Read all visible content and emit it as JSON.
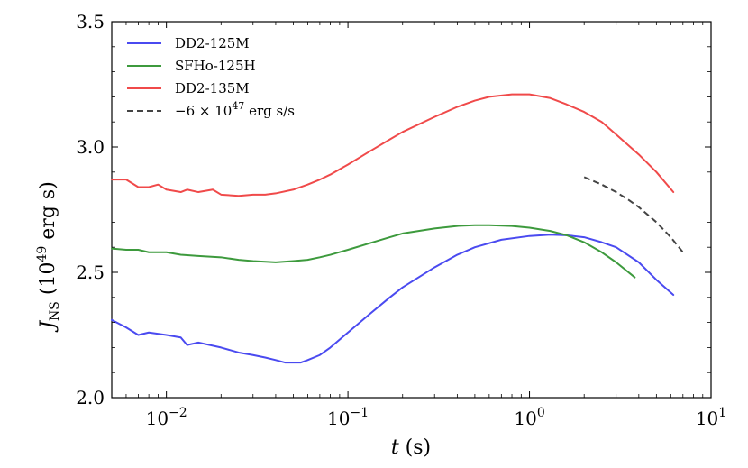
{
  "chart_data": {
    "type": "line",
    "title": "",
    "xlabel": "t (s)",
    "ylabel": "J_NS (10^49 erg s)",
    "xscale": "log",
    "xlim": [
      0.005,
      10
    ],
    "ylim": [
      2.0,
      3.5
    ],
    "grid": false,
    "legend_position": "top-left",
    "x_ticks": [
      {
        "value": 0.01,
        "base": "10",
        "exp": "−2"
      },
      {
        "value": 0.1,
        "base": "10",
        "exp": "−1"
      },
      {
        "value": 1,
        "base": "10",
        "exp": "0"
      },
      {
        "value": 10,
        "base": "10",
        "exp": "1"
      }
    ],
    "y_ticks": [
      {
        "value": 2.0,
        "label": "2.0"
      },
      {
        "value": 2.5,
        "label": "2.5"
      },
      {
        "value": 3.0,
        "label": "3.0"
      },
      {
        "value": 3.5,
        "label": "3.5"
      }
    ],
    "series": [
      {
        "name": "DD2-125M",
        "color": "#4a4af0",
        "dash": "solid",
        "x": [
          0.005,
          0.006,
          0.007,
          0.008,
          0.01,
          0.012,
          0.013,
          0.015,
          0.02,
          0.025,
          0.03,
          0.035,
          0.04,
          0.045,
          0.05,
          0.055,
          0.06,
          0.07,
          0.08,
          0.1,
          0.13,
          0.17,
          0.2,
          0.3,
          0.4,
          0.5,
          0.7,
          1.0,
          1.3,
          1.6,
          2.0,
          2.5,
          3.0,
          4.0,
          5.0,
          6.2
        ],
        "y": [
          2.31,
          2.28,
          2.25,
          2.26,
          2.25,
          2.24,
          2.21,
          2.22,
          2.2,
          2.18,
          2.17,
          2.16,
          2.15,
          2.14,
          2.14,
          2.14,
          2.15,
          2.17,
          2.2,
          2.26,
          2.33,
          2.4,
          2.44,
          2.52,
          2.57,
          2.6,
          2.63,
          2.645,
          2.65,
          2.648,
          2.64,
          2.62,
          2.6,
          2.54,
          2.47,
          2.41
        ]
      },
      {
        "name": "SFHo-125H",
        "color": "#3d9a3d",
        "dash": "solid",
        "x": [
          0.005,
          0.006,
          0.007,
          0.008,
          0.01,
          0.012,
          0.015,
          0.02,
          0.025,
          0.03,
          0.04,
          0.05,
          0.06,
          0.07,
          0.08,
          0.1,
          0.13,
          0.17,
          0.2,
          0.3,
          0.4,
          0.5,
          0.6,
          0.8,
          1.0,
          1.3,
          1.6,
          2.0,
          2.5,
          3.0,
          3.8
        ],
        "y": [
          2.595,
          2.59,
          2.59,
          2.58,
          2.58,
          2.57,
          2.565,
          2.56,
          2.55,
          2.545,
          2.54,
          2.545,
          2.55,
          2.56,
          2.57,
          2.59,
          2.615,
          2.64,
          2.655,
          2.675,
          2.685,
          2.688,
          2.688,
          2.685,
          2.678,
          2.665,
          2.648,
          2.62,
          2.58,
          2.54,
          2.48
        ]
      },
      {
        "name": "DD2-135M",
        "color": "#f04a4a",
        "dash": "solid",
        "x": [
          0.005,
          0.006,
          0.007,
          0.008,
          0.009,
          0.01,
          0.012,
          0.013,
          0.015,
          0.018,
          0.02,
          0.025,
          0.03,
          0.035,
          0.04,
          0.05,
          0.06,
          0.07,
          0.08,
          0.1,
          0.13,
          0.17,
          0.2,
          0.3,
          0.4,
          0.5,
          0.6,
          0.8,
          1.0,
          1.3,
          1.6,
          2.0,
          2.5,
          3.0,
          4.0,
          5.0,
          6.2
        ],
        "y": [
          2.87,
          2.87,
          2.84,
          2.84,
          2.85,
          2.83,
          2.82,
          2.83,
          2.82,
          2.83,
          2.81,
          2.805,
          2.81,
          2.81,
          2.815,
          2.83,
          2.85,
          2.87,
          2.89,
          2.93,
          2.98,
          3.03,
          3.06,
          3.12,
          3.16,
          3.185,
          3.2,
          3.21,
          3.21,
          3.195,
          3.17,
          3.14,
          3.1,
          3.05,
          2.97,
          2.9,
          2.82
        ]
      },
      {
        "name": "−6 × 10^47 erg s/s",
        "color": "#444444",
        "dash": "dashed",
        "x": [
          2.0,
          2.5,
          3.0,
          3.5,
          4.0,
          5.0,
          6.0,
          7.0
        ],
        "y": [
          2.88,
          2.85,
          2.82,
          2.79,
          2.76,
          2.7,
          2.64,
          2.58
        ]
      }
    ],
    "legend": [
      {
        "label": "DD2-125M"
      },
      {
        "label": "SFHo-125H"
      },
      {
        "label": "DD2-135M"
      },
      {
        "label": "−6 × 10",
        "sup": "47",
        "suffix": " erg s/s"
      }
    ]
  }
}
